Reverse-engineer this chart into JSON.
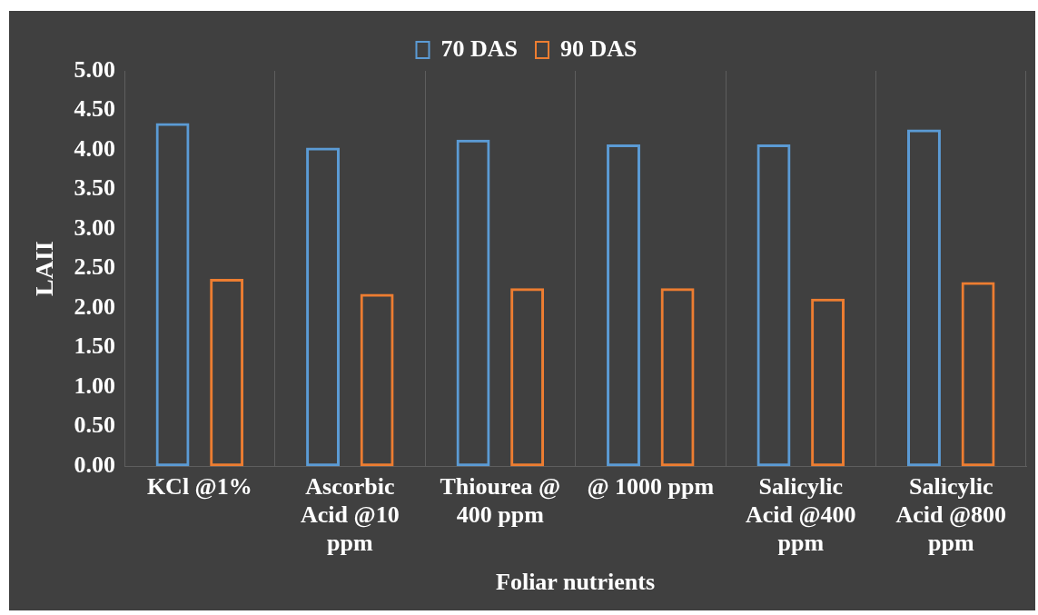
{
  "chart_data": {
    "type": "bar",
    "xlabel": "Foliar nutrients",
    "ylabel": "LAII",
    "categories": [
      "KCl @1%",
      "Ascorbic Acid @10 ppm",
      "Thiourea @ 400 ppm",
      "@ 1000 ppm",
      "Salicylic Acid @400 ppm",
      "Salicylic Acid @800 ppm"
    ],
    "series": [
      {
        "name": "70 DAS",
        "color": "#5b9bd5",
        "values": [
          4.34,
          4.03,
          4.13,
          4.07,
          4.07,
          4.26
        ]
      },
      {
        "name": "90 DAS",
        "color": "#ed7d31",
        "values": [
          2.37,
          2.18,
          2.25,
          2.25,
          2.12,
          2.33
        ]
      }
    ],
    "ylim": [
      0,
      5
    ],
    "yticks": [
      {
        "value": 0,
        "label": "0.00"
      },
      {
        "value": 0.5,
        "label": "0.50"
      },
      {
        "value": 1,
        "label": "1.00"
      },
      {
        "value": 1.5,
        "label": "1.50"
      },
      {
        "value": 2,
        "label": "2.00"
      },
      {
        "value": 2.5,
        "label": "2.50"
      },
      {
        "value": 3,
        "label": "3.00"
      },
      {
        "value": 3.5,
        "label": "3.50"
      },
      {
        "value": 4,
        "label": "4.00"
      },
      {
        "value": 4.5,
        "label": "4.50"
      },
      {
        "value": 5,
        "label": "5.00"
      }
    ],
    "grid": "x",
    "legend": "top"
  }
}
